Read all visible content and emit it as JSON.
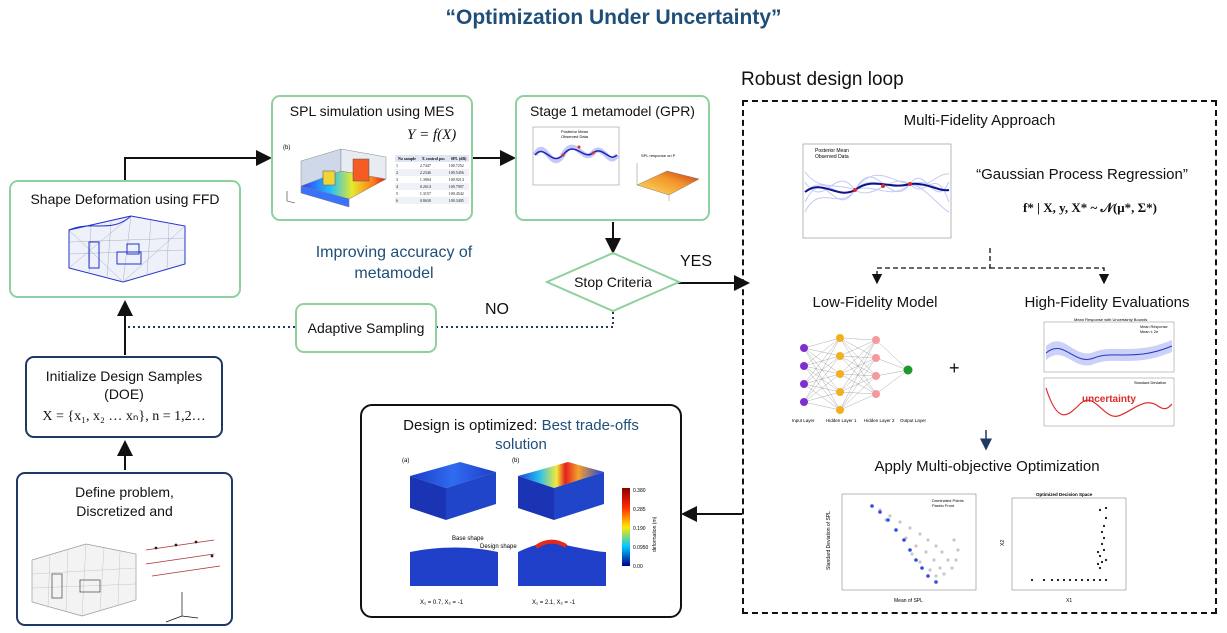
{
  "title": "“Optimization Under Uncertainty”",
  "robust_loop": {
    "heading": "Robust design loop",
    "mf_approach": "Multi-Fidelity Approach",
    "gpr_title": "“Gaussian Process Regression”",
    "gpr_formula": "f* | X, y, X* ~ 𝒩(μ*, Σ*)",
    "gpr_legend": [
      "Posterior Mean",
      "Observed Data"
    ],
    "low_fidelity": "Low-Fidelity Model",
    "high_fidelity": "High-Fidelity Evaluations",
    "plus": "+",
    "nn_labels": [
      "Input Layer",
      "Hidden Layer 1",
      "Hidden Layer 2",
      "Output Layer"
    ],
    "uncertainty": "uncertainty",
    "hf_plot1_title": "Mean Response with Uncertainty Bounds",
    "hf_plot1_legend": [
      "Mean Response",
      "Mean ± 2σ"
    ],
    "hf_plot2_legend": "Standard Deviation",
    "moo": "Apply Multi-objective Optimization",
    "pareto_legend": [
      "Dominated Points",
      "Pareto Front"
    ],
    "pareto_xlabel": "Mean of SPL",
    "pareto_ylabel": "Standard Deviation of SPL",
    "decision_title": "Optimized Decision Space",
    "decision_xlabel": "X1",
    "decision_ylabel": "X2"
  },
  "boxes": {
    "spl": "SPL simulation using MES",
    "spl_formula": "Y = f(X)",
    "spl_table_headers": [
      "No sample",
      "X control pos",
      "SPL (dB)"
    ],
    "spl_table_rows": [
      [
        "1",
        "2.7447",
        "100.7252"
      ],
      [
        "2",
        "2.2346",
        "100.5456"
      ],
      [
        "3",
        "1.3904",
        "100.9214"
      ],
      [
        "4",
        "0.2614",
        "100.7907"
      ],
      [
        "5",
        "1.3157",
        "100.4542"
      ],
      [
        "6",
        "0.8630",
        "100.3405"
      ]
    ],
    "stage1": "Stage 1 metamodel (GPR)",
    "stage1_legend": [
      "Posterior Mean",
      "Observed Data"
    ],
    "stage1_surface_title": "SPL response on P",
    "ffd": "Shape Deformation using FFD",
    "init": "Initialize Design Samples (DOE)",
    "init_formula": "X = {x₁, x₂ … xₙ}, n = 1,2…",
    "define": "Define problem, Discretized and",
    "adaptive": "Adaptive Sampling",
    "stop": "Stop Criteria",
    "yes": "YES",
    "no": "NO",
    "improve": "Improving accuracy of metamodel",
    "optimized_prefix": "Design is optimized: ",
    "optimized_suffix": "Best trade-offs solution",
    "opt_panels": [
      "(a)",
      "(b)"
    ],
    "opt_captions": [
      "X₁ = 0.7, X₂ = -1",
      "X₁ = 2.1, X₂ = -1"
    ],
    "opt_annotations": [
      "Base shape",
      "Design shape"
    ],
    "colorbar_ticks": [
      "0.380",
      "0.285",
      "0.190",
      "0.0950",
      "0.00"
    ],
    "colorbar_label": "deformation (m)"
  }
}
